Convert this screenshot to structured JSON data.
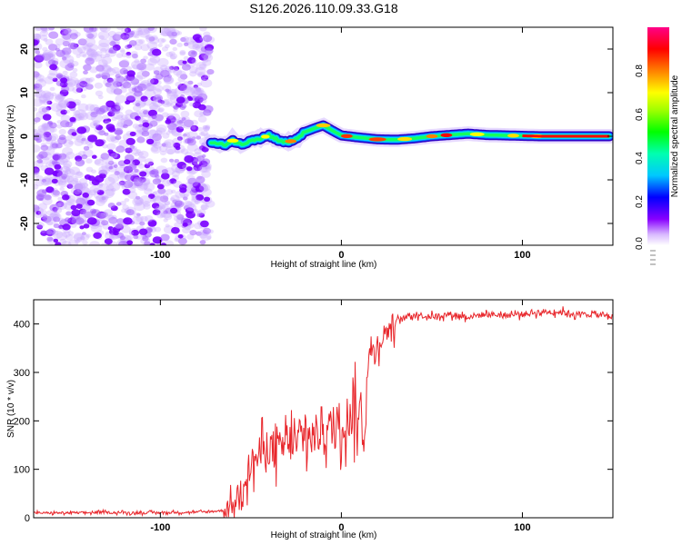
{
  "title": "S126.2026.110.09.33.G18",
  "colors": {
    "line": "#e8262b",
    "axis": "#000000",
    "spectral_line": "#ff0000"
  },
  "chart_data": [
    {
      "type": "heatmap",
      "xlabel": "Height of straight line (km)",
      "ylabel": "Frequency (Hz)",
      "xlim": [
        -170,
        150
      ],
      "ylim": [
        -25,
        25
      ],
      "xticks": [
        -100,
        0,
        100
      ],
      "yticks": [
        -20,
        -10,
        0,
        10,
        20
      ],
      "noise_region": [
        -170,
        -72
      ],
      "ridge": {
        "x": [
          -72,
          -65,
          -60,
          -55,
          -50,
          -45,
          -40,
          -35,
          -30,
          -25,
          -20,
          -15,
          -10,
          -5,
          0,
          10,
          20,
          30,
          40,
          50,
          60,
          70,
          80,
          90,
          100,
          110,
          120,
          130,
          140,
          148
        ],
        "y": [
          -1.5,
          -2.0,
          -1.0,
          -2.0,
          -0.8,
          -0.5,
          0.2,
          -0.8,
          -1.5,
          -0.6,
          1.0,
          1.8,
          2.5,
          1.3,
          0.2,
          -0.3,
          -0.7,
          -0.8,
          -0.5,
          0.0,
          0.3,
          0.6,
          0.3,
          0.2,
          0.1,
          0.0,
          0.0,
          0.0,
          0.0,
          0.0
        ]
      },
      "colorbar": {
        "label": "Normalized spectral amplitude",
        "ticks": [
          "0.0",
          "0.2",
          "0.4",
          "0.6",
          "0.8"
        ],
        "range": [
          0,
          1
        ]
      }
    },
    {
      "type": "line",
      "xlabel": "Height of straight line (km)",
      "ylabel": "SNR (10 * v/v)",
      "xlim": [
        -170,
        150
      ],
      "ylim": [
        0,
        450
      ],
      "xticks": [
        -100,
        0,
        100
      ],
      "yticks": [
        0,
        100,
        200,
        300,
        400
      ],
      "series": [
        {
          "name": "SNR",
          "x": [
            -170,
            -150,
            -130,
            -110,
            -90,
            -75,
            -65,
            -60,
            -55,
            -50,
            -45,
            -40,
            -35,
            -30,
            -25,
            -20,
            -15,
            -10,
            -5,
            0,
            5,
            10,
            13,
            14,
            15,
            20,
            25,
            30,
            40,
            50,
            60,
            70,
            80,
            90,
            100,
            110,
            120,
            130,
            140,
            150
          ],
          "y": [
            10,
            10,
            11,
            10,
            11,
            12,
            15,
            25,
            70,
            110,
            130,
            150,
            135,
            160,
            150,
            170,
            165,
            190,
            180,
            200,
            210,
            220,
            160,
            300,
            330,
            360,
            385,
            405,
            420,
            415,
            420,
            415,
            420,
            418,
            420,
            425,
            425,
            420,
            420,
            415
          ]
        }
      ]
    }
  ]
}
